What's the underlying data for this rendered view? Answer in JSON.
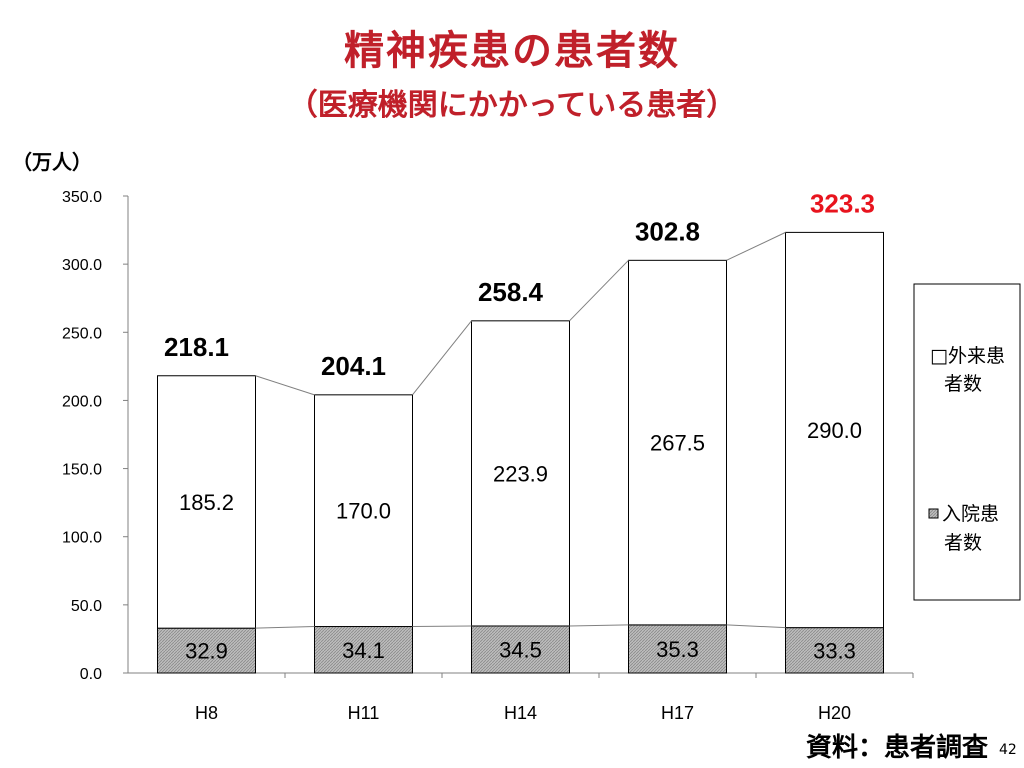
{
  "title": "精神疾患の患者数",
  "subtitle": "（医療機関にかかっている患者）",
  "unit_label": "（万人）",
  "source": "資料：患者調査",
  "page_number": "42",
  "colors": {
    "title": "#c0202a",
    "highlight_total": "#e8141e",
    "normal_total": "#000000",
    "inpatient_fill": "#bdbdbd",
    "outpatient_fill": "#ffffff"
  },
  "chart_data": {
    "type": "bar",
    "stacked": true,
    "categories": [
      "H8",
      "H11",
      "H14",
      "H17",
      "H20"
    ],
    "series": [
      {
        "name": "入院患者数",
        "values": [
          32.9,
          34.1,
          34.5,
          35.3,
          33.3
        ],
        "labels": [
          "32.9",
          "34.1",
          "34.5",
          "35.3",
          "33.3"
        ]
      },
      {
        "name": "外来患者数",
        "values": [
          185.2,
          170.0,
          223.9,
          267.5,
          290.0
        ],
        "labels": [
          "185.2",
          "170.0",
          "223.9",
          "267.5",
          "290.0"
        ]
      }
    ],
    "totals": [
      218.1,
      204.1,
      258.4,
      302.8,
      323.3
    ],
    "total_labels": [
      "218.1",
      "204.1",
      "258.4",
      "302.8",
      "323.3"
    ],
    "ylim": [
      0,
      350
    ],
    "yticks": [
      "0.0",
      "50.0",
      "100.0",
      "150.0",
      "200.0",
      "250.0",
      "300.0",
      "350.0"
    ],
    "ytick_values": [
      0,
      50,
      100,
      150,
      200,
      250,
      300,
      350
    ],
    "legend": {
      "placement": "right",
      "outpatient": [
        "□外来患",
        "者数"
      ],
      "inpatient": [
        "入院患",
        "者数"
      ]
    }
  }
}
